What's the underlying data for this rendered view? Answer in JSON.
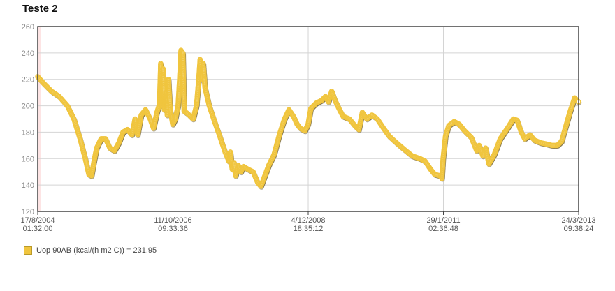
{
  "chart_data": {
    "type": "line",
    "title": "Teste 2",
    "xlabel": "",
    "ylabel": "",
    "ylim": [
      120,
      260
    ],
    "yticks": [
      120,
      140,
      160,
      180,
      200,
      220,
      240,
      260
    ],
    "xlim": [
      "2004-08-17T01:32:00",
      "2013-03-24T09:38:24"
    ],
    "xticks": [
      {
        "value": "2004-08-17T01:32:00",
        "date": "17/8/2004",
        "time": "01:32:00"
      },
      {
        "value": "2006-10-11T09:33:36",
        "date": "11/10/2006",
        "time": "09:33:36"
      },
      {
        "value": "2008-12-04T18:35:12",
        "date": "4/12/2008",
        "time": "18:35:12"
      },
      {
        "value": "2011-01-29T02:36:48",
        "date": "29/1/2011",
        "time": "02:36:48"
      },
      {
        "value": "2013-03-24T09:38:24",
        "date": "24/3/2013",
        "time": "09:38:24"
      }
    ],
    "grid": true,
    "legend_position": "bottom-left",
    "series": [
      {
        "name": "Uop 90AB (kcal/(h m2 C)) = 231.95",
        "color": "#f0c53e",
        "points": [
          [
            "2004-08-17",
            222
          ],
          [
            "2004-09-20",
            217
          ],
          [
            "2004-11-05",
            211
          ],
          [
            "2004-12-20",
            207
          ],
          [
            "2005-02-05",
            200
          ],
          [
            "2005-03-15",
            190
          ],
          [
            "2005-04-20",
            175
          ],
          [
            "2005-05-20",
            160
          ],
          [
            "2005-06-10",
            148
          ],
          [
            "2005-06-25",
            147
          ],
          [
            "2005-07-10",
            158
          ],
          [
            "2005-07-25",
            168
          ],
          [
            "2005-08-20",
            175
          ],
          [
            "2005-09-15",
            175
          ],
          [
            "2005-10-10",
            168
          ],
          [
            "2005-11-05",
            166
          ],
          [
            "2005-12-01",
            172
          ],
          [
            "2005-12-25",
            180
          ],
          [
            "2006-01-20",
            182
          ],
          [
            "2006-02-15",
            178
          ],
          [
            "2006-03-05",
            190
          ],
          [
            "2006-03-20",
            178
          ],
          [
            "2006-04-10",
            193
          ],
          [
            "2006-05-05",
            197
          ],
          [
            "2006-06-01",
            190
          ],
          [
            "2006-06-20",
            183
          ],
          [
            "2006-07-10",
            195
          ],
          [
            "2006-07-25",
            201
          ],
          [
            "2006-08-01",
            232
          ],
          [
            "2006-08-08",
            200
          ],
          [
            "2006-08-15",
            228
          ],
          [
            "2006-08-22",
            197
          ],
          [
            "2006-09-01",
            210
          ],
          [
            "2006-09-08",
            193
          ],
          [
            "2006-09-15",
            220
          ],
          [
            "2006-09-25",
            197
          ],
          [
            "2006-10-10",
            186
          ],
          [
            "2006-10-25",
            190
          ],
          [
            "2006-11-10",
            200
          ],
          [
            "2006-11-20",
            222
          ],
          [
            "2006-11-27",
            242
          ],
          [
            "2006-12-02",
            225
          ],
          [
            "2006-12-08",
            240
          ],
          [
            "2006-12-15",
            196
          ],
          [
            "2007-01-05",
            194
          ],
          [
            "2007-02-05",
            190
          ],
          [
            "2007-02-25",
            200
          ],
          [
            "2007-03-10",
            220
          ],
          [
            "2007-03-18",
            235
          ],
          [
            "2007-03-25",
            220
          ],
          [
            "2007-04-05",
            232
          ],
          [
            "2007-04-15",
            214
          ],
          [
            "2007-05-10",
            200
          ],
          [
            "2007-06-10",
            188
          ],
          [
            "2007-07-10",
            177
          ],
          [
            "2007-08-10",
            165
          ],
          [
            "2007-09-01",
            158
          ],
          [
            "2007-09-10",
            165
          ],
          [
            "2007-09-20",
            152
          ],
          [
            "2007-10-01",
            157
          ],
          [
            "2007-10-10",
            147
          ],
          [
            "2007-10-25",
            155
          ],
          [
            "2007-11-10",
            150
          ],
          [
            "2007-11-25",
            154
          ],
          [
            "2007-12-20",
            152
          ],
          [
            "2008-01-20",
            150
          ],
          [
            "2008-02-15",
            142
          ],
          [
            "2008-03-05",
            139
          ],
          [
            "2008-03-25",
            146
          ],
          [
            "2008-04-20",
            155
          ],
          [
            "2008-05-20",
            163
          ],
          [
            "2008-06-20",
            178
          ],
          [
            "2008-07-20",
            190
          ],
          [
            "2008-08-15",
            197
          ],
          [
            "2008-09-10",
            192
          ],
          [
            "2008-10-01",
            186
          ],
          [
            "2008-10-20",
            183
          ],
          [
            "2008-11-15",
            181
          ],
          [
            "2008-12-04",
            186
          ],
          [
            "2008-12-20",
            198
          ],
          [
            "2009-01-20",
            202
          ],
          [
            "2009-02-20",
            204
          ],
          [
            "2009-03-15",
            207
          ],
          [
            "2009-04-01",
            203
          ],
          [
            "2009-04-20",
            211
          ],
          [
            "2009-05-10",
            204
          ],
          [
            "2009-06-01",
            198
          ],
          [
            "2009-06-25",
            192
          ],
          [
            "2009-08-01",
            190
          ],
          [
            "2009-09-01",
            185
          ],
          [
            "2009-09-25",
            182
          ],
          [
            "2009-10-15",
            195
          ],
          [
            "2009-11-10",
            190
          ],
          [
            "2009-12-10",
            193
          ],
          [
            "2010-01-10",
            190
          ],
          [
            "2010-02-15",
            183
          ],
          [
            "2010-03-20",
            177
          ],
          [
            "2010-05-01",
            172
          ],
          [
            "2010-06-15",
            167
          ],
          [
            "2010-08-01",
            162
          ],
          [
            "2010-09-15",
            160
          ],
          [
            "2010-10-15",
            158
          ],
          [
            "2010-11-15",
            152
          ],
          [
            "2010-12-10",
            148
          ],
          [
            "2011-01-10",
            147
          ],
          [
            "2011-01-20",
            145
          ],
          [
            "2011-01-27",
            160
          ],
          [
            "2011-02-10",
            177
          ],
          [
            "2011-03-01",
            185
          ],
          [
            "2011-04-01",
            188
          ],
          [
            "2011-05-01",
            186
          ],
          [
            "2011-06-01",
            181
          ],
          [
            "2011-07-10",
            176
          ],
          [
            "2011-08-10",
            166
          ],
          [
            "2011-08-25",
            170
          ],
          [
            "2011-09-15",
            162
          ],
          [
            "2011-10-01",
            168
          ],
          [
            "2011-10-20",
            156
          ],
          [
            "2011-11-20",
            163
          ],
          [
            "2011-12-25",
            175
          ],
          [
            "2012-02-05",
            183
          ],
          [
            "2012-03-10",
            190
          ],
          [
            "2012-04-01",
            189
          ],
          [
            "2012-04-25",
            180
          ],
          [
            "2012-05-15",
            175
          ],
          [
            "2012-06-15",
            178
          ],
          [
            "2012-07-10",
            174
          ],
          [
            "2012-08-15",
            172
          ],
          [
            "2012-09-20",
            171
          ],
          [
            "2012-10-20",
            170
          ],
          [
            "2012-11-20",
            170
          ],
          [
            "2012-12-15",
            173
          ],
          [
            "2013-01-10",
            185
          ],
          [
            "2013-02-01",
            195
          ],
          [
            "2013-03-01",
            206
          ],
          [
            "2013-03-24",
            203
          ]
        ]
      }
    ]
  }
}
